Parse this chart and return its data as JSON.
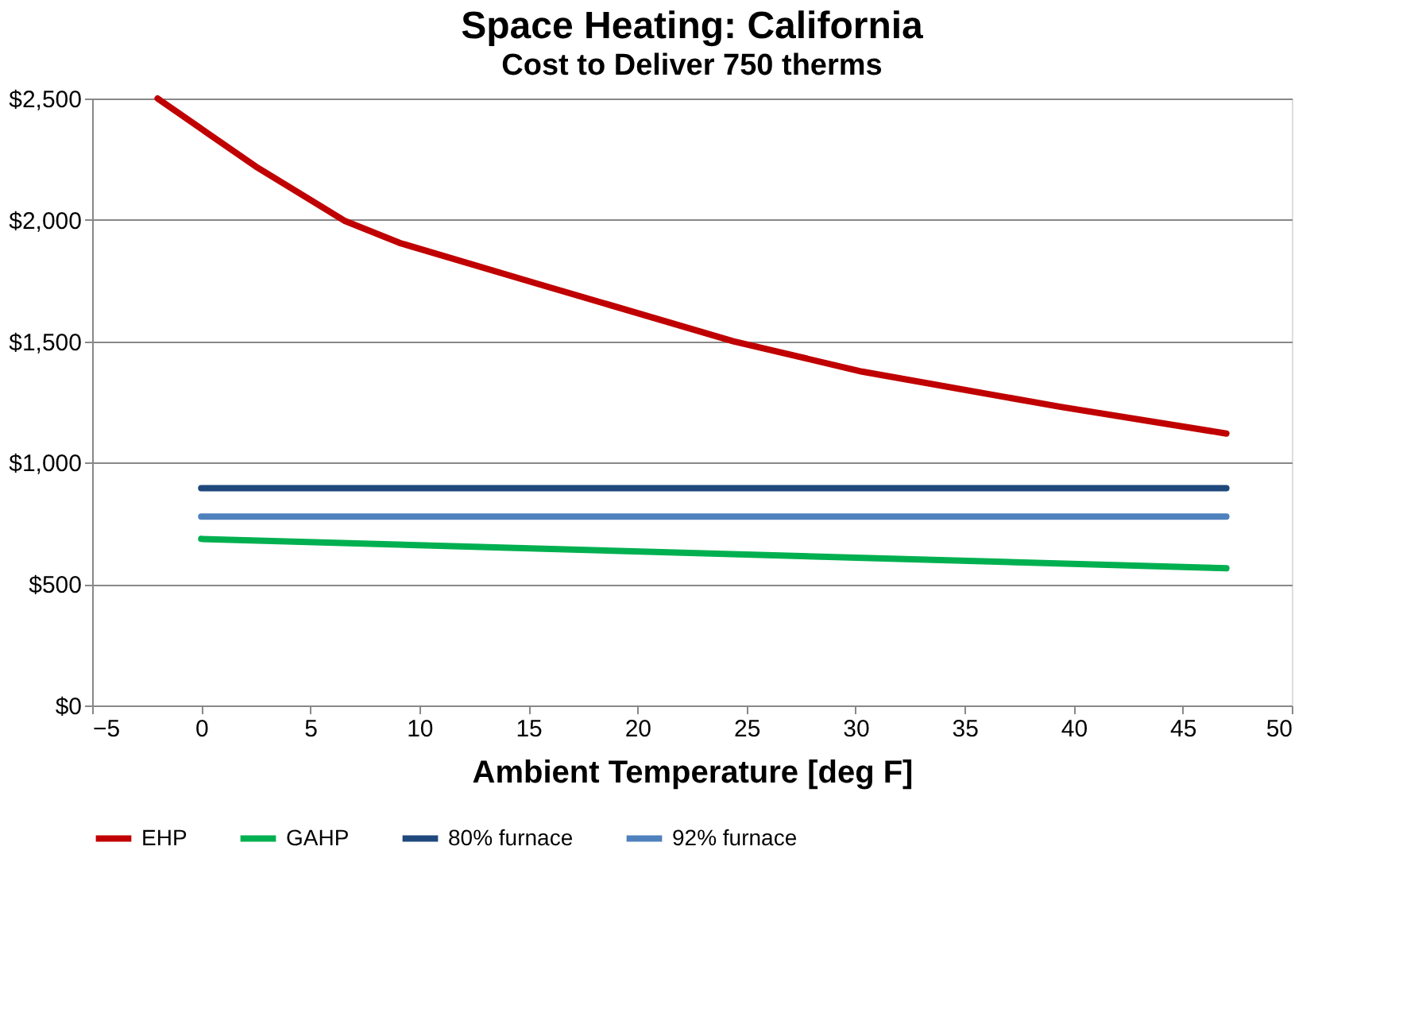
{
  "chart_data": {
    "type": "line",
    "title": "Space Heating:  California",
    "subtitle": "Cost to Deliver 750 therms",
    "xlabel": "Ambient Temperature [deg F]",
    "xlim": [
      -5,
      50
    ],
    "xticks": [
      -5,
      0,
      5,
      10,
      15,
      20,
      25,
      30,
      35,
      40,
      45,
      50
    ],
    "ylim": [
      0,
      2500
    ],
    "yticks": [
      {
        "value": 0,
        "label": "$0"
      },
      {
        "value": 500,
        "label": "$500"
      },
      {
        "value": 1000,
        "label": "$1,000"
      },
      {
        "value": 1500,
        "label": "$1,500"
      },
      {
        "value": 2000,
        "label": "$2,000"
      },
      {
        "value": 2500,
        "label": "$2,500"
      }
    ],
    "grid": "y",
    "legend": "bottom",
    "marker": "none",
    "line_style": "solid",
    "series": [
      {
        "name": "EHP",
        "color": "#c00000",
        "x": [
          -2,
          2.5,
          6.6,
          9.1,
          15.3,
          24.4,
          30.3,
          39.4,
          47
        ],
        "values": [
          2500,
          2220,
          1995,
          1905,
          1740,
          1500,
          1375,
          1230,
          1120
        ]
      },
      {
        "name": "GAHP",
        "color": "#00b050",
        "x": [
          0,
          47
        ],
        "values": [
          686,
          565
        ]
      },
      {
        "name": "80% furnace",
        "color": "#1f497d",
        "x": [
          0,
          47
        ],
        "values": [
          895,
          895
        ]
      },
      {
        "name": "92% furnace",
        "color": "#4f81bd",
        "x": [
          0,
          47
        ],
        "values": [
          778,
          778
        ]
      }
    ]
  }
}
